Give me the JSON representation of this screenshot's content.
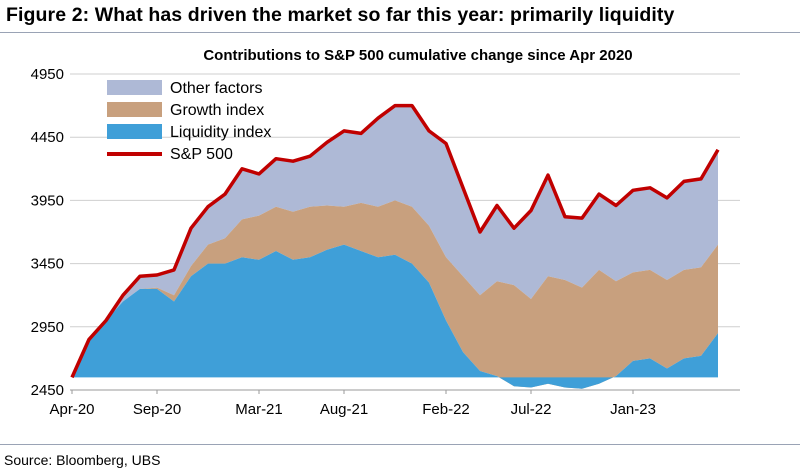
{
  "figure": {
    "title": "Figure 2: What has driven the market so far this year: primarily liquidity",
    "source": "Source: Bloomberg, UBS"
  },
  "chart_data": {
    "type": "area",
    "title": "Contributions to S&P 500 cumulative change since Apr 2020",
    "xlabel": "",
    "ylabel": "",
    "ylim": [
      2450,
      4950
    ],
    "yticks": [
      2450,
      2950,
      3450,
      3950,
      4450,
      4950
    ],
    "xticks": [
      "Apr-20",
      "Sep-20",
      "Mar-21",
      "Aug-21",
      "Feb-22",
      "Jul-22",
      "Jan-23"
    ],
    "baseline": 2550,
    "legend_position": "top-left",
    "x": [
      "Apr-20",
      "May-20",
      "Jun-20",
      "Jul-20",
      "Aug-20",
      "Sep-20",
      "Oct-20",
      "Nov-20",
      "Dec-20",
      "Jan-21",
      "Feb-21",
      "Mar-21",
      "Apr-21",
      "May-21",
      "Jun-21",
      "Jul-21",
      "Aug-21",
      "Sep-21",
      "Oct-21",
      "Nov-21",
      "Dec-21",
      "Jan-22",
      "Feb-22",
      "Mar-22",
      "Apr-22",
      "May-22",
      "Jun-22",
      "Jul-22",
      "Aug-22",
      "Sep-22",
      "Oct-22",
      "Nov-22",
      "Dec-22",
      "Jan-23",
      "Feb-23",
      "Mar-23",
      "Apr-23",
      "May-23",
      "Jun-23"
    ],
    "series": [
      {
        "name": "Liquidity index",
        "color": "#3f9fd8",
        "type": "stacked-area",
        "values": [
          2550,
          2850,
          3000,
          3150,
          3250,
          3250,
          3150,
          3350,
          3450,
          3450,
          3500,
          3480,
          3550,
          3480,
          3500,
          3560,
          3600,
          3550,
          3500,
          3520,
          3450,
          3300,
          3000,
          2750,
          2600,
          2560,
          2480,
          2470,
          2500,
          2470,
          2460,
          2500,
          2560,
          2680,
          2700,
          2620,
          2700,
          2720,
          2900
        ]
      },
      {
        "name": "Growth index",
        "color": "#c8a07e",
        "type": "stacked-area",
        "values": [
          0,
          0,
          0,
          0,
          0,
          10,
          50,
          80,
          150,
          200,
          300,
          350,
          350,
          380,
          400,
          350,
          300,
          380,
          400,
          430,
          450,
          450,
          500,
          600,
          600,
          750,
          800,
          700,
          850,
          850,
          800,
          900,
          750,
          700,
          700,
          700,
          700,
          700,
          700
        ]
      },
      {
        "name": "Other factors",
        "color": "#aeb9d6",
        "type": "stacked-area",
        "values": [
          0,
          0,
          20,
          50,
          100,
          100,
          200,
          300,
          300,
          350,
          400,
          330,
          380,
          400,
          400,
          500,
          600,
          550,
          700,
          750,
          800,
          750,
          900,
          700,
          500,
          600,
          450,
          700,
          800,
          500,
          550,
          600,
          600,
          650,
          650,
          650,
          700,
          700,
          750
        ]
      },
      {
        "name": "S&P 500",
        "color": "#c00000",
        "type": "line",
        "values": [
          2550,
          2850,
          3000,
          3200,
          3350,
          3360,
          3400,
          3730,
          3900,
          4000,
          4200,
          4160,
          4280,
          4260,
          4300,
          4410,
          4500,
          4480,
          4600,
          4700,
          4700,
          4500,
          4400,
          4050,
          3700,
          3910,
          3730,
          3870,
          4150,
          3820,
          3810,
          4000,
          3910,
          4030,
          4050,
          3970,
          4100,
          4120,
          4350
        ]
      }
    ]
  }
}
